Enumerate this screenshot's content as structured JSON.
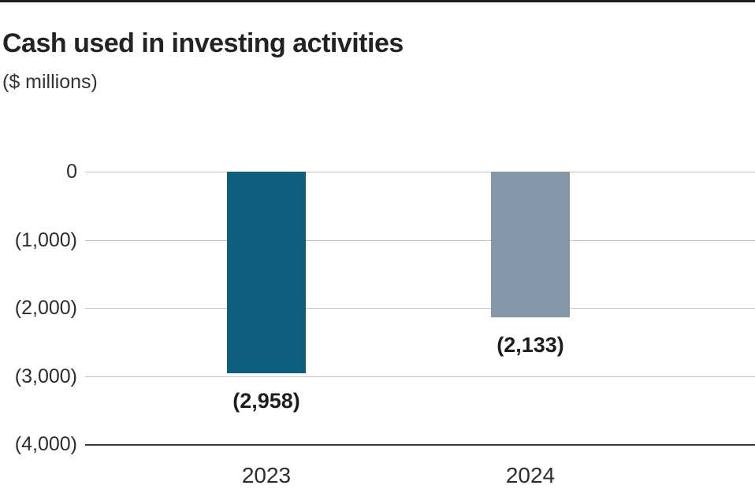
{
  "header": {
    "title": "Cash used in investing activities",
    "subtitle": "($ millions)"
  },
  "chart_data": {
    "type": "bar",
    "title": "Cash used in investing activities",
    "subtitle": "($ millions)",
    "unit": "$ millions",
    "orientation": "vertical",
    "negative_format": "accounting-parentheses",
    "categories": [
      "2023",
      "2024"
    ],
    "values": [
      -2958,
      -2133
    ],
    "value_labels": [
      "(2,958)",
      "(2,133)"
    ],
    "bar_colors": [
      "#0d5f7d",
      "#8596a8"
    ],
    "y_ticks": [
      0,
      -1000,
      -2000,
      -3000,
      -4000
    ],
    "y_tick_labels": [
      "0",
      "(1,000)",
      "(2,000)",
      "(3,000)",
      "(4,000)"
    ],
    "ylim": [
      -4000,
      0
    ],
    "grid": true,
    "legend": false
  },
  "colors": {
    "bar_2023": "#0d5f7d",
    "bar_2024": "#8596a8",
    "gridline": "#c6c6c6",
    "axis_line": "#3a3a3a",
    "top_rule": "#1c1c1c",
    "title_text": "#232323",
    "axis_text": "#2d2d2d",
    "value_label_text": "#1d1d1d",
    "background": "#ffffff"
  }
}
